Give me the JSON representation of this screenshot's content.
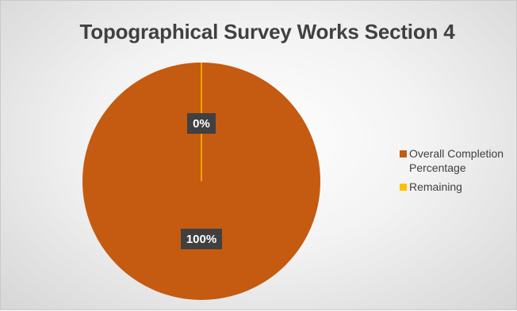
{
  "chart_data": {
    "type": "pie",
    "title": "Topographical Survey Works Section 4",
    "categories": [
      "Overall Completion Percentage",
      "Remaining"
    ],
    "values": [
      100,
      0
    ],
    "data_labels": [
      "100%",
      "0%"
    ],
    "colors": [
      "#c55a11",
      "#ffc000"
    ],
    "legend_position": "right"
  }
}
